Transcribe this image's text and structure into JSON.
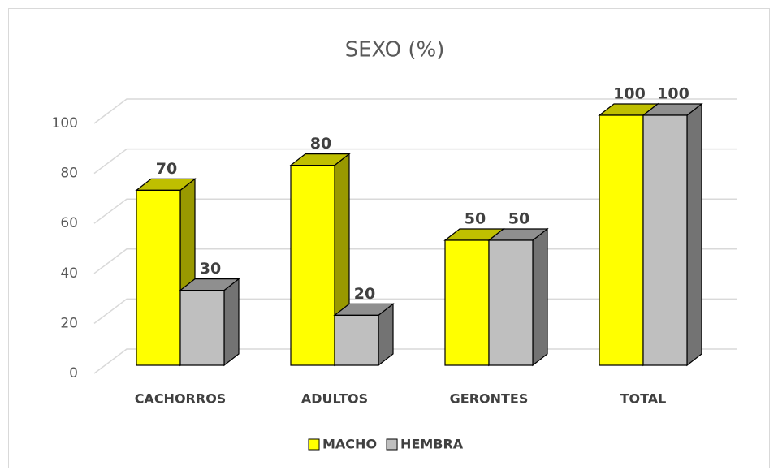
{
  "chart_data": {
    "type": "bar3d",
    "title": "SEXO (%)",
    "categories": [
      "CACHORROS",
      "ADULTOS",
      "GERONTES",
      "TOTAL"
    ],
    "series": [
      {
        "name": "MACHO",
        "color": "#ffff00",
        "values": [
          70,
          80,
          50,
          100
        ]
      },
      {
        "name": "HEMBRA",
        "color": "#bfbfbf",
        "values": [
          30,
          20,
          50,
          100
        ]
      }
    ],
    "ylim": [
      0,
      100
    ],
    "yticks": [
      0,
      20,
      40,
      60,
      80,
      100
    ],
    "grid": true,
    "legend": "bottom"
  }
}
